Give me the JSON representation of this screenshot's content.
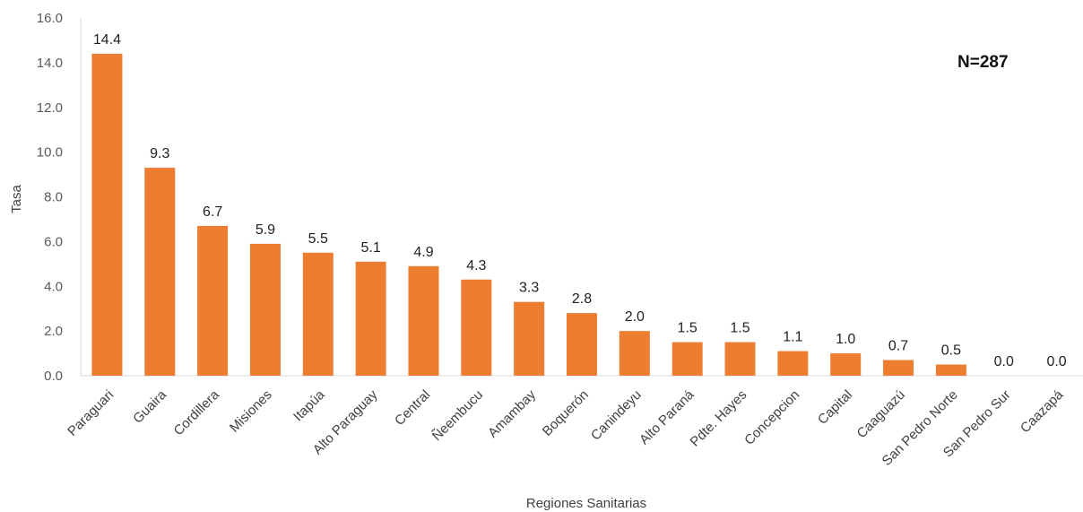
{
  "chart_data": {
    "type": "bar",
    "title": "",
    "annotation": "N=287",
    "xlabel": "Regiones Sanitarias",
    "ylabel": "Tasa",
    "ylim": [
      0,
      16
    ],
    "yticks": [
      "0.0",
      "2.0",
      "4.0",
      "6.0",
      "8.0",
      "10.0",
      "12.0",
      "14.0",
      "16.0"
    ],
    "grid": false,
    "bar_color": "#ED7D31",
    "categories": [
      "Paraguari",
      "Guaira",
      "Cordillera",
      "Misiones",
      "Itapúa",
      "Alto Paraguay",
      "Central",
      "Ñeembucu",
      "Amambay",
      "Boquerón",
      "Canindeyu",
      "Alto Paraná",
      "Pdte. Hayes",
      "Concepcion",
      "Capital",
      "Caaguazú",
      "San Pedro Norte",
      "San Pedro Sur",
      "Caazapá"
    ],
    "values": [
      14.4,
      9.3,
      6.7,
      5.9,
      5.5,
      5.1,
      4.9,
      4.3,
      3.3,
      2.8,
      2.0,
      1.5,
      1.5,
      1.1,
      1.0,
      0.7,
      0.5,
      0.0,
      0.0
    ],
    "data_labels": [
      "14.4",
      "9.3",
      "6.7",
      "5.9",
      "5.5",
      "5.1",
      "4.9",
      "4.3",
      "3.3",
      "2.8",
      "2.0",
      "1.5",
      "1.5",
      "1.1",
      "1.0",
      "0.7",
      "0.5",
      "0.0",
      "0.0"
    ]
  }
}
